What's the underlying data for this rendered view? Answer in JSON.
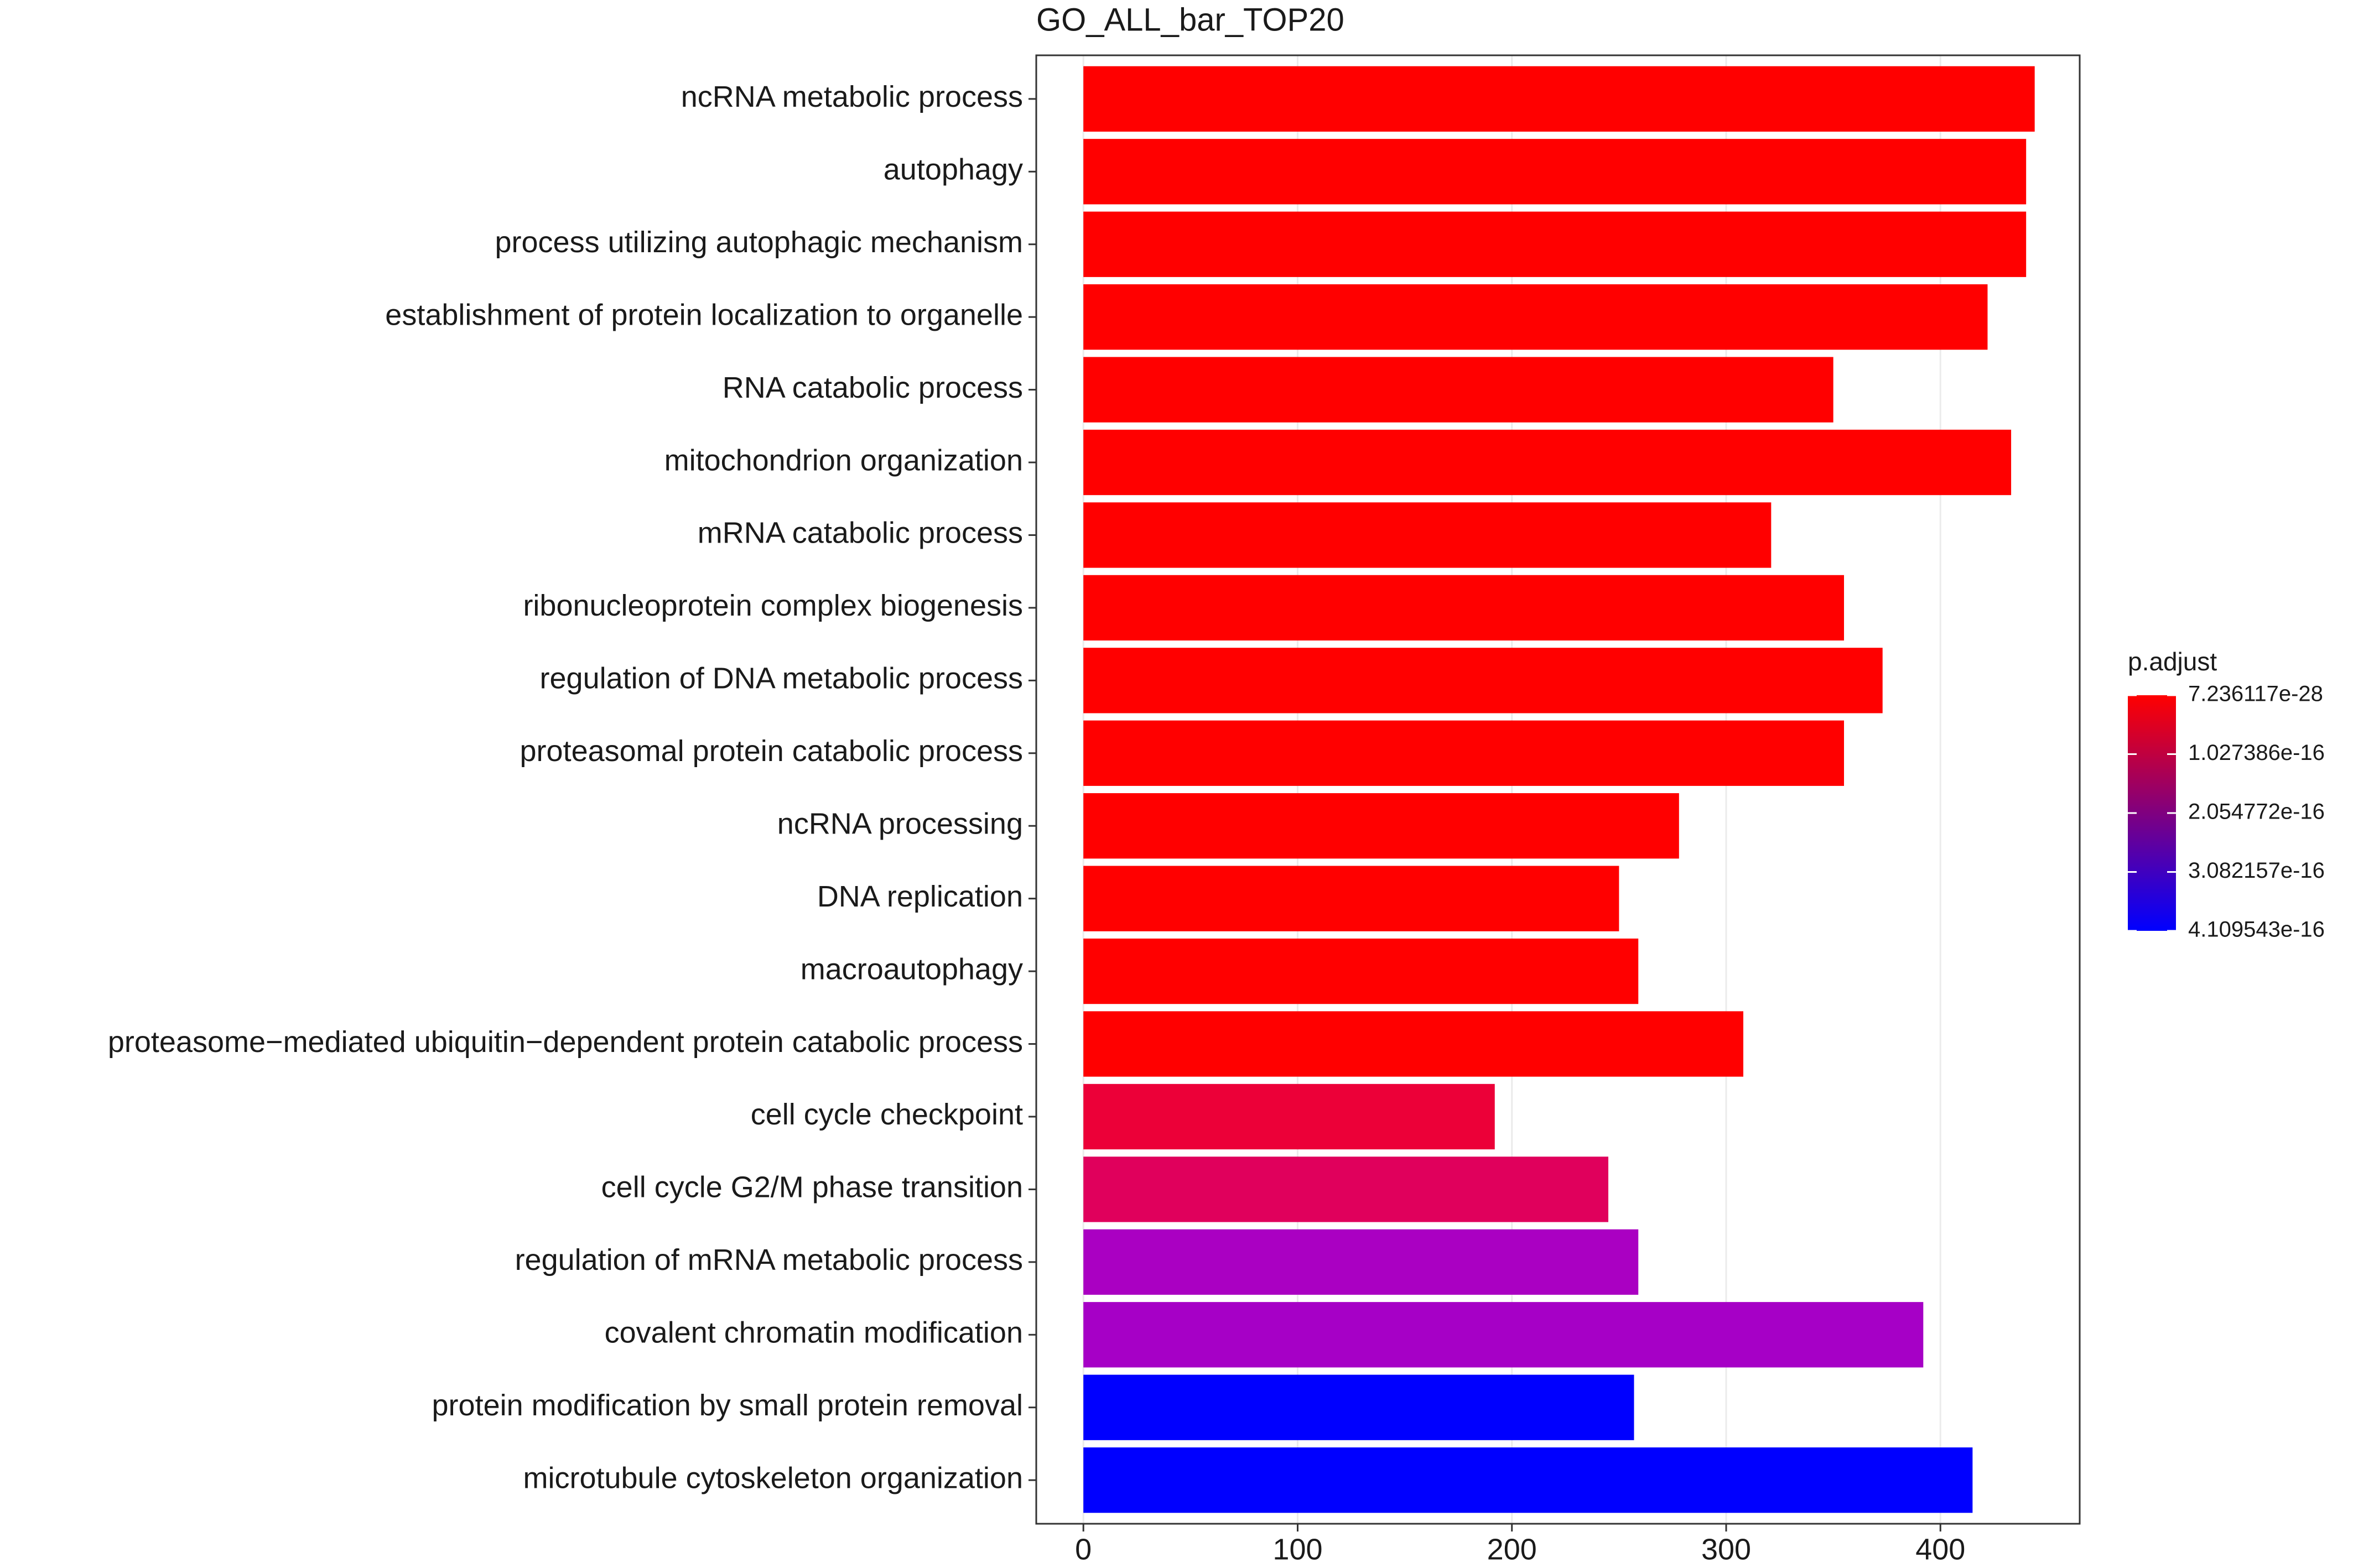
{
  "chart_data": {
    "type": "bar",
    "orientation": "horizontal",
    "title": "GO_ALL_bar_TOP20",
    "categories": [
      "ncRNA metabolic process",
      "autophagy",
      "process utilizing autophagic mechanism",
      "establishment of protein localization to organelle",
      "RNA catabolic process",
      "mitochondrion organization",
      "mRNA catabolic process",
      "ribonucleoprotein complex biogenesis",
      "regulation of DNA metabolic process",
      "proteasomal protein catabolic process",
      "ncRNA processing",
      "DNA replication",
      "macroautophagy",
      "proteasome−mediated ubiquitin−dependent protein catabolic process",
      "cell cycle checkpoint",
      "cell cycle G2/M phase transition",
      "regulation of mRNA metabolic process",
      "covalent chromatin modification",
      "protein modification by small protein removal",
      "microtubule cytoskeleton organization"
    ],
    "values": [
      444,
      440,
      440,
      422,
      350,
      433,
      321,
      355,
      373,
      355,
      278,
      250,
      259,
      308,
      192,
      245,
      259,
      392,
      257,
      415
    ],
    "colors": [
      "#ff0000",
      "#ff0000",
      "#ff0000",
      "#ff0000",
      "#ff0000",
      "#ff0000",
      "#ff0000",
      "#ff0000",
      "#ff0000",
      "#ff0000",
      "#ff0000",
      "#ff0000",
      "#ff0000",
      "#ff0000",
      "#ec0038",
      "#e0005c",
      "#aa00c2",
      "#a600c6",
      "#0000ff",
      "#0000ff"
    ],
    "xlim": [
      -22,
      465
    ],
    "xticks": [
      0,
      100,
      200,
      300,
      400
    ],
    "grid": true,
    "legend": {
      "title": "p.adjust",
      "colors": [
        "#ff0000",
        "#0000ff"
      ],
      "range": [
        7.236117e-28,
        4.109543e-16
      ],
      "ticks": [
        7.236117e-28,
        1.027386e-16,
        2.054772e-16,
        3.082157e-16,
        4.109543e-16
      ]
    }
  }
}
